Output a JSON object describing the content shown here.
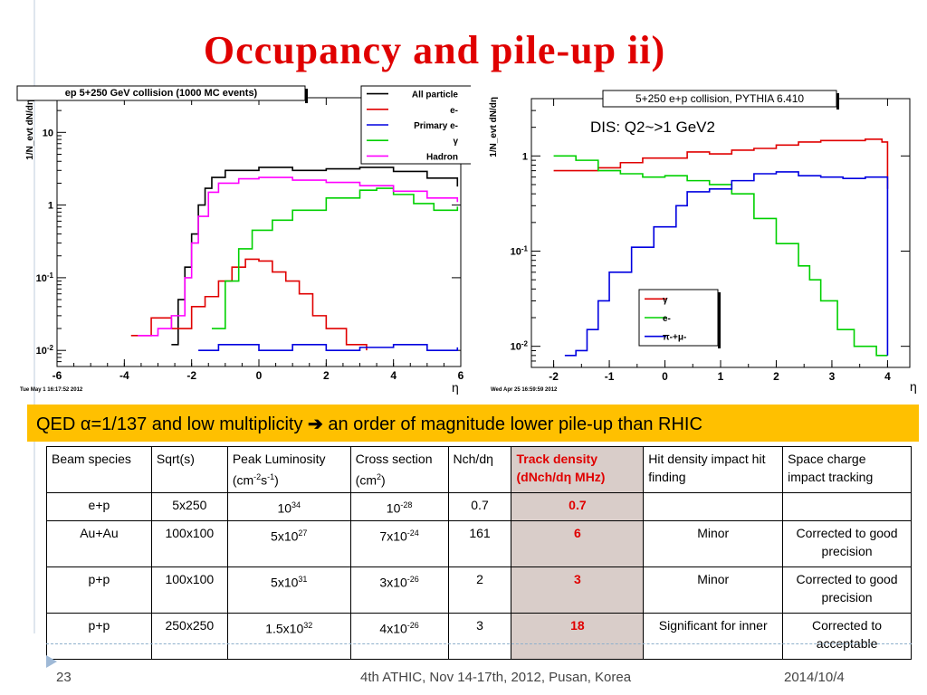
{
  "slide": {
    "title": "Occupancy and pile-up ii)",
    "banner_before": "QED α=1/137 and low multiplicity ",
    "banner_arrow": "➔",
    "banner_after": " an order of magnitude lower pile-up than RHIC",
    "footer": {
      "page": "23",
      "event": "4th ATHIC, Nov 14-17th, 2012, Pusan, Korea",
      "date": "2014/10/4"
    }
  },
  "table": {
    "headers": [
      "Beam species",
      "Sqrt(s)",
      "Peak Luminosity (cm-2s-1)",
      "Cross section (cm2)",
      "Nch/dη",
      "Track density (dNch/dη MHz)",
      "Hit density impact hit finding",
      "Space charge impact tracking"
    ],
    "rows": [
      {
        "species": "e+p",
        "sqrts": "5x250",
        "lumi_base": "10",
        "lumi_exp": "34",
        "xsec_base": "10",
        "xsec_exp": "-28",
        "nch": "0.7",
        "track": "0.7",
        "hit": "",
        "space": ""
      },
      {
        "species": "Au+Au",
        "sqrts": "100x100",
        "lumi_base": "5x10",
        "lumi_exp": "27",
        "xsec_base": "7x10",
        "xsec_exp": "-24",
        "nch": "161",
        "track": "6",
        "hit": "Minor",
        "space": "Corrected to good precision"
      },
      {
        "species": "p+p",
        "sqrts": "100x100",
        "lumi_base": "5x10",
        "lumi_exp": "31",
        "xsec_base": "3x10",
        "xsec_exp": "-26",
        "nch": "2",
        "track": "3",
        "hit": "Minor",
        "space": "Corrected to good precision"
      },
      {
        "species": "p+p",
        "sqrts": "250x250",
        "lumi_base": "1.5x10",
        "lumi_exp": "32",
        "xsec_base": "4x10",
        "xsec_exp": "-26",
        "nch": "3",
        "track": "18",
        "hit": "Significant for inner",
        "space": "Corrected to acceptable"
      }
    ]
  },
  "colors": {
    "title": "#e00000",
    "banner": "#ffc000",
    "highlight": "#d9cdc9"
  },
  "chart_data": [
    {
      "type": "line",
      "title": "ep 5+250 GeV collision (1000 MC events)",
      "ylabel": "1/N_evt dN/dη",
      "xlabel": "η",
      "timestamp": "Tue May  1 16:17:52 2012",
      "xlim": [
        -6,
        6
      ],
      "ylim": [
        0.006,
        30
      ],
      "ylog": true,
      "xticks": [
        "-6",
        "-4",
        "-2",
        "0",
        "2",
        "4",
        "6"
      ],
      "yticks": [
        {
          "v": 10,
          "label": "10"
        },
        {
          "v": 1,
          "label": "1"
        },
        {
          "v": 0.1,
          "label": "10-1"
        },
        {
          "v": 0.01,
          "label": "10-2"
        }
      ],
      "legend_position": "top-right",
      "series": [
        {
          "name": "All particle",
          "color": "#000000",
          "points": [
            [
              -2.6,
              0.012
            ],
            [
              -2.4,
              0.05
            ],
            [
              -2.2,
              0.14
            ],
            [
              -2.0,
              0.4
            ],
            [
              -1.8,
              1.0
            ],
            [
              -1.6,
              1.7
            ],
            [
              -1.4,
              2.4
            ],
            [
              -1.0,
              3.0
            ],
            [
              0.0,
              3.3
            ],
            [
              1.0,
              3.0
            ],
            [
              2.0,
              3.15
            ],
            [
              3.0,
              3.3
            ],
            [
              4.0,
              2.9
            ],
            [
              5.0,
              2.35
            ],
            [
              5.9,
              1.8
            ]
          ]
        },
        {
          "name": "e-",
          "color": "#e00000",
          "points": [
            [
              -3.8,
              0.016
            ],
            [
              -3.2,
              0.028
            ],
            [
              -2.6,
              0.02
            ],
            [
              -2.0,
              0.04
            ],
            [
              -1.6,
              0.055
            ],
            [
              -1.2,
              0.09
            ],
            [
              -0.8,
              0.14
            ],
            [
              -0.4,
              0.18
            ],
            [
              0.0,
              0.17
            ],
            [
              0.4,
              0.12
            ],
            [
              0.8,
              0.09
            ],
            [
              1.2,
              0.06
            ],
            [
              1.6,
              0.03
            ],
            [
              2.0,
              0.02
            ],
            [
              2.6,
              0.012
            ],
            [
              3.2,
              0.01
            ]
          ]
        },
        {
          "name": "Primary e-",
          "color": "#0000e0",
          "points": [
            [
              -1.8,
              0.01
            ],
            [
              -1.2,
              0.012
            ],
            [
              0.0,
              0.01
            ],
            [
              1.0,
              0.012
            ],
            [
              2.0,
              0.01
            ],
            [
              3.0,
              0.011
            ],
            [
              4.0,
              0.012
            ],
            [
              5.0,
              0.01
            ],
            [
              5.9,
              0.011
            ]
          ]
        },
        {
          "name": "γ",
          "color": "#00d000",
          "points": [
            [
              -1.4,
              0.02
            ],
            [
              -1.0,
              0.09
            ],
            [
              -0.6,
              0.25
            ],
            [
              -0.2,
              0.45
            ],
            [
              0.4,
              0.62
            ],
            [
              1.0,
              0.85
            ],
            [
              2.0,
              1.25
            ],
            [
              3.0,
              1.6
            ],
            [
              3.5,
              1.7
            ],
            [
              4.0,
              1.4
            ],
            [
              4.6,
              1.05
            ],
            [
              5.2,
              0.85
            ],
            [
              5.9,
              0.95
            ]
          ]
        },
        {
          "name": "Hadron",
          "color": "#ff00ff",
          "points": [
            [
              -3.6,
              0.016
            ],
            [
              -3.0,
              0.02
            ],
            [
              -2.6,
              0.03
            ],
            [
              -2.2,
              0.1
            ],
            [
              -2.0,
              0.3
            ],
            [
              -1.8,
              0.7
            ],
            [
              -1.5,
              1.5
            ],
            [
              -1.2,
              2.0
            ],
            [
              -0.6,
              2.3
            ],
            [
              0.0,
              2.4
            ],
            [
              1.0,
              2.2
            ],
            [
              2.0,
              2.05
            ],
            [
              3.0,
              1.85
            ],
            [
              4.0,
              1.55
            ],
            [
              5.0,
              1.25
            ],
            [
              5.9,
              1.1
            ]
          ]
        }
      ]
    },
    {
      "type": "line",
      "title": "5+250 e+p collision, PYTHIA 6.410",
      "annotation": "DIS: Q2~>1 GeV2",
      "ylabel": "1/N_evt dN/dη",
      "xlabel": "η",
      "timestamp": "Wed Apr 25 16:59:59 2012",
      "xlim": [
        -2.4,
        4.4
      ],
      "ylim": [
        0.006,
        4
      ],
      "ylog": true,
      "xticks": [
        "-2",
        "-1",
        "0",
        "1",
        "2",
        "3",
        "4"
      ],
      "yticks": [
        {
          "v": 1,
          "label": "1"
        },
        {
          "v": 0.1,
          "label": "10-1"
        },
        {
          "v": 0.01,
          "label": "10-2"
        }
      ],
      "legend_position": "bottom-right",
      "series": [
        {
          "name": "γ",
          "color": "#e00000",
          "points": [
            [
              -2.0,
              0.7
            ],
            [
              -1.6,
              0.7
            ],
            [
              -1.2,
              0.75
            ],
            [
              -0.8,
              0.85
            ],
            [
              -0.4,
              0.95
            ],
            [
              0.0,
              0.95
            ],
            [
              0.4,
              1.1
            ],
            [
              0.8,
              1.05
            ],
            [
              1.2,
              1.15
            ],
            [
              1.6,
              1.2
            ],
            [
              2.0,
              1.3
            ],
            [
              2.4,
              1.4
            ],
            [
              2.8,
              1.45
            ],
            [
              3.2,
              1.45
            ],
            [
              3.6,
              1.5
            ],
            [
              3.9,
              1.4
            ],
            [
              4.0,
              0.45
            ]
          ]
        },
        {
          "name": "e-",
          "color": "#00d000",
          "points": [
            [
              -2.0,
              1.0
            ],
            [
              -1.6,
              0.9
            ],
            [
              -1.2,
              0.7
            ],
            [
              -0.8,
              0.65
            ],
            [
              -0.4,
              0.6
            ],
            [
              0.0,
              0.62
            ],
            [
              0.4,
              0.55
            ],
            [
              0.8,
              0.5
            ],
            [
              1.2,
              0.4
            ],
            [
              1.6,
              0.22
            ],
            [
              2.0,
              0.12
            ],
            [
              2.4,
              0.07
            ],
            [
              2.6,
              0.05
            ],
            [
              2.8,
              0.03
            ],
            [
              3.1,
              0.015
            ],
            [
              3.4,
              0.01
            ],
            [
              3.8,
              0.008
            ],
            [
              4.0,
              0.008
            ]
          ]
        },
        {
          "name": "π-+μ-",
          "color": "#0000e0",
          "points": [
            [
              -1.8,
              0.008
            ],
            [
              -1.6,
              0.009
            ],
            [
              -1.4,
              0.015
            ],
            [
              -1.2,
              0.03
            ],
            [
              -1.0,
              0.06
            ],
            [
              -0.6,
              0.11
            ],
            [
              -0.2,
              0.18
            ],
            [
              0.2,
              0.3
            ],
            [
              0.4,
              0.42
            ],
            [
              0.8,
              0.45
            ],
            [
              1.2,
              0.55
            ],
            [
              1.6,
              0.65
            ],
            [
              2.0,
              0.68
            ],
            [
              2.4,
              0.62
            ],
            [
              2.8,
              0.6
            ],
            [
              3.2,
              0.58
            ],
            [
              3.6,
              0.6
            ],
            [
              3.9,
              0.6
            ],
            [
              4.0,
              0.008
            ]
          ]
        }
      ]
    }
  ]
}
